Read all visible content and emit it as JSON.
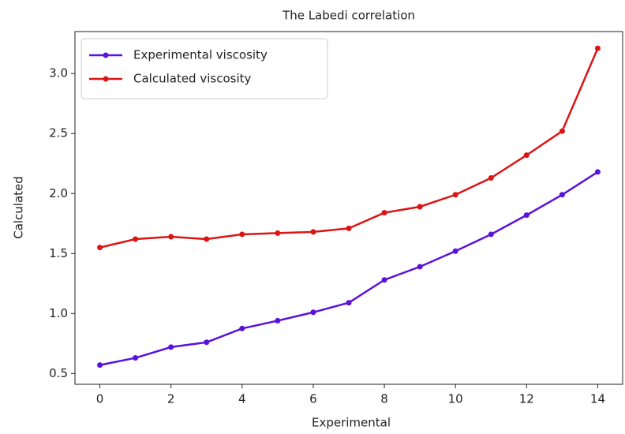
{
  "chart_data": {
    "type": "line",
    "title": "The Labedi correlation",
    "xlabel": "Experimental",
    "ylabel": "Calculated",
    "x": [
      0,
      1,
      2,
      3,
      4,
      5,
      6,
      7,
      8,
      9,
      10,
      11,
      12,
      13,
      14
    ],
    "series": [
      {
        "name": "Experimental viscosity",
        "color": "#5a12dc",
        "values": [
          0.57,
          0.63,
          0.72,
          0.76,
          0.875,
          0.94,
          1.01,
          1.09,
          1.28,
          1.39,
          1.52,
          1.66,
          1.82,
          1.99,
          2.18
        ]
      },
      {
        "name": "Calculated viscosity",
        "color": "#dc1414",
        "values": [
          1.55,
          1.62,
          1.64,
          1.62,
          1.66,
          1.67,
          1.68,
          1.71,
          1.84,
          1.89,
          1.99,
          2.13,
          2.32,
          2.52,
          3.21
        ]
      }
    ],
    "xlim": [
      -0.7,
      14.7
    ],
    "ylim": [
      0.41,
      3.35
    ],
    "xticks": [
      0,
      2,
      4,
      6,
      8,
      10,
      12,
      14
    ],
    "yticks": [
      0.5,
      {
        "value": 1,
        "label": "1.0"
      },
      1.5,
      {
        "value": 2,
        "label": "2.0"
      },
      2.5,
      {
        "value": 3,
        "label": "3.0"
      }
    ],
    "legend": "upper left",
    "grid": false
  }
}
